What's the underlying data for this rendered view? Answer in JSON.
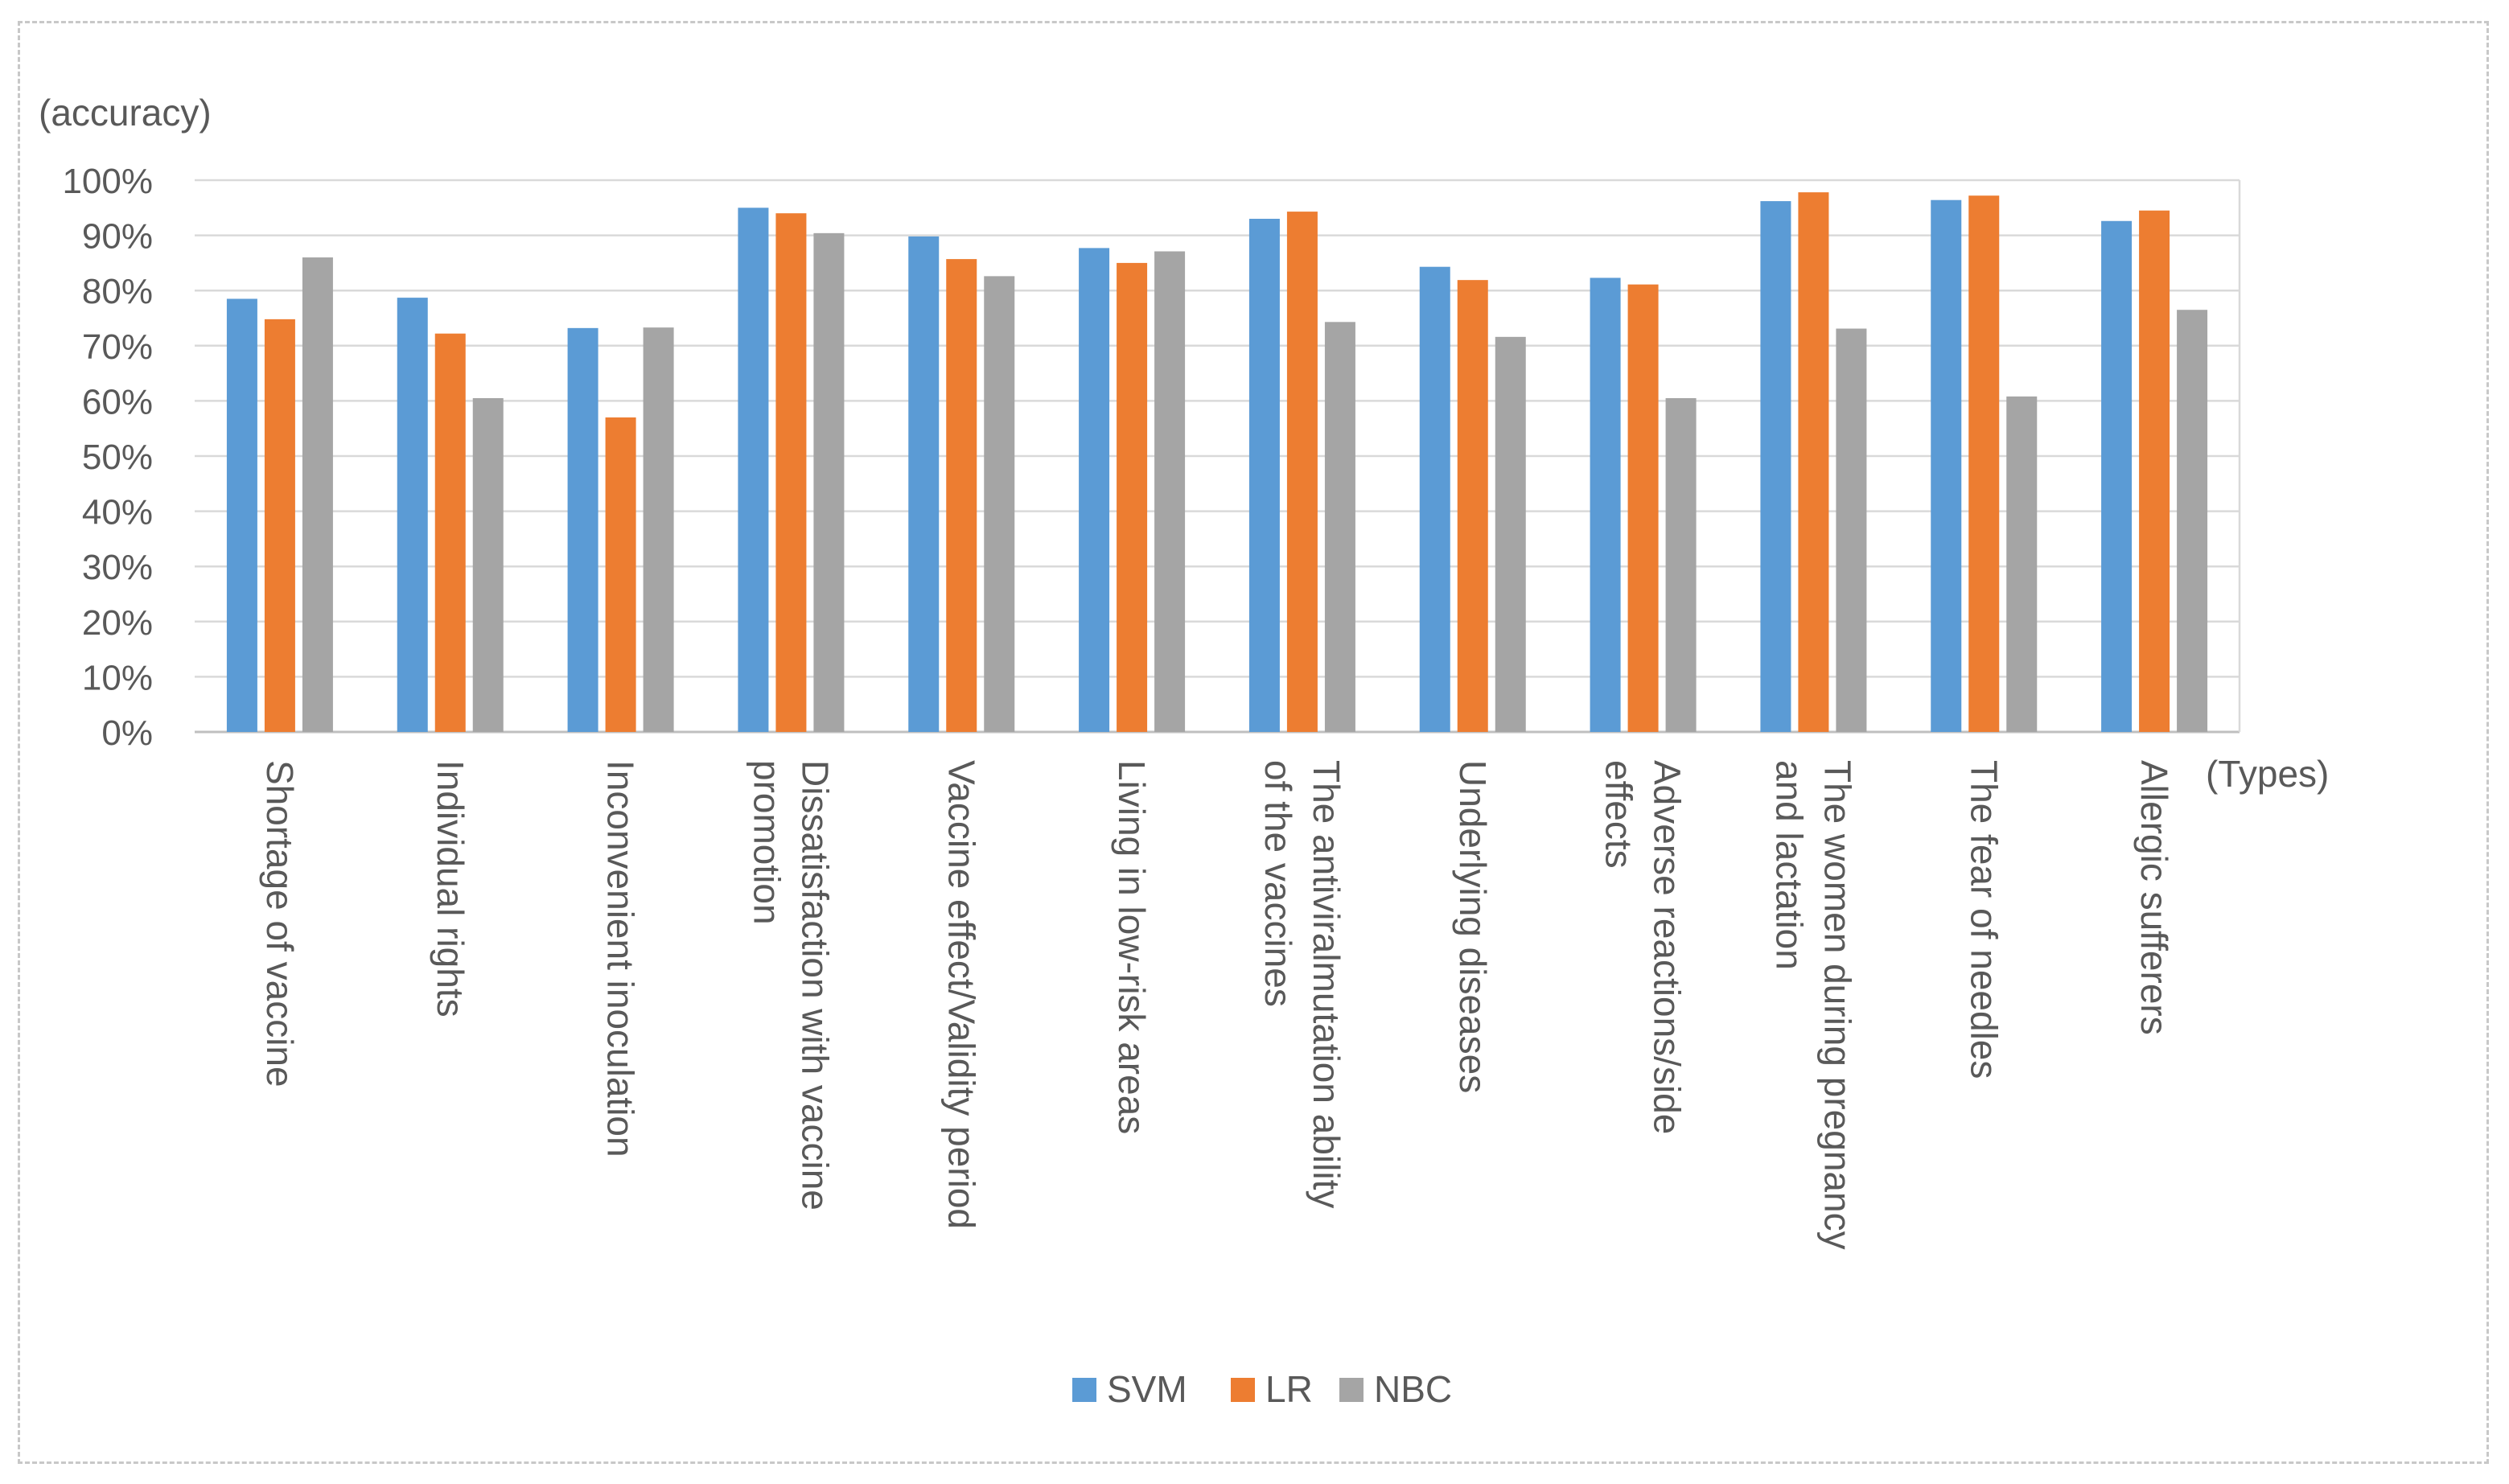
{
  "chart_data": {
    "type": "bar",
    "ylabel": "(accuracy)",
    "xlabel": "(Types)",
    "ylim": [
      0,
      100
    ],
    "yticks": [
      "0%",
      "10%",
      "20%",
      "30%",
      "40%",
      "50%",
      "60%",
      "70%",
      "80%",
      "90%",
      "100%"
    ],
    "grid": true,
    "legend_position": "bottom",
    "categories": [
      [
        "Shortage of vaccine"
      ],
      [
        "Individual rights"
      ],
      [
        "Inconvenient inoculation"
      ],
      [
        "Dissatisfaction with vaccine",
        "promotion"
      ],
      [
        "Vaccine effect/Validity period"
      ],
      [
        "Living in low-risk areas"
      ],
      [
        "The antiviralmutation ability",
        "of the vaccines"
      ],
      [
        "Underlying diseases"
      ],
      [
        "Adverse reactions/side",
        "effects"
      ],
      [
        "The women during pregnancy",
        "and lactation"
      ],
      [
        "The fear of needles"
      ],
      [
        "Allergic sufferers"
      ]
    ],
    "series": [
      {
        "name": "SVM",
        "color": "#5b9bd5",
        "values": [
          78.5,
          78.7,
          73.2,
          95.0,
          89.8,
          87.7,
          93.0,
          84.3,
          82.3,
          96.2,
          96.4,
          92.6
        ]
      },
      {
        "name": "LR",
        "color": "#ed7d31",
        "values": [
          74.8,
          72.2,
          57.0,
          94.0,
          85.7,
          85.0,
          94.3,
          81.9,
          81.1,
          97.8,
          97.2,
          94.5
        ]
      },
      {
        "name": "NBC",
        "color": "#a5a5a5",
        "values": [
          86.0,
          60.5,
          73.3,
          90.4,
          82.6,
          87.1,
          74.3,
          71.6,
          60.5,
          73.1,
          60.8,
          76.5
        ]
      }
    ]
  }
}
